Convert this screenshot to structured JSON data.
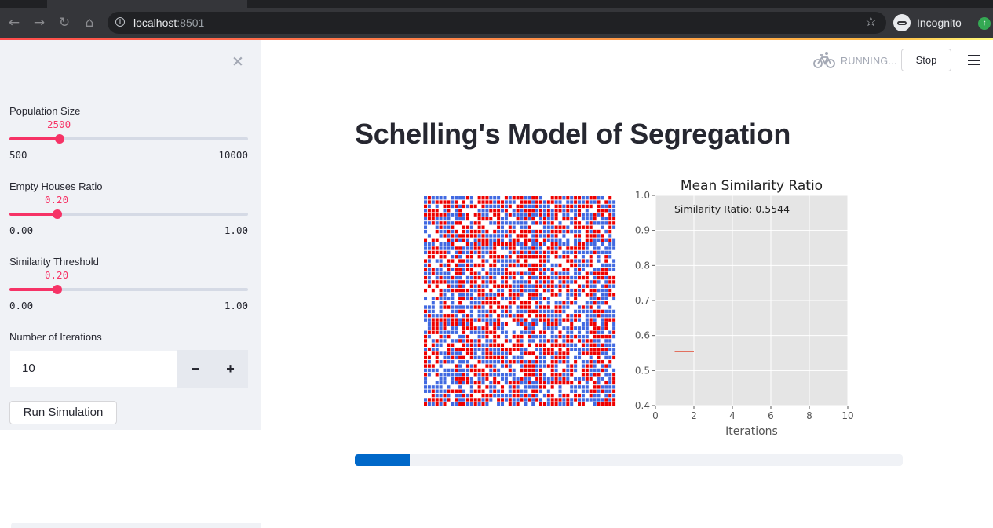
{
  "browser": {
    "url_host": "localhost",
    "url_port": ":8501",
    "profile_label": "Incognito",
    "icons": {
      "back": "arrow-left-icon",
      "forward": "arrow-right-icon",
      "reload": "reload-icon",
      "home": "home-icon",
      "site_info": "info-icon",
      "bookmark": "star-icon",
      "profile": "incognito-icon",
      "extension": "extension-icon"
    }
  },
  "sidebar": {
    "sliders": [
      {
        "label": "Population Size",
        "value_text": "2500",
        "min_text": "500",
        "max_text": "10000",
        "fraction": 0.2
      },
      {
        "label": "Empty Houses Ratio",
        "value_text": "0.20",
        "min_text": "0.00",
        "max_text": "1.00",
        "fraction": 0.2
      },
      {
        "label": "Similarity Threshold",
        "value_text": "0.20",
        "min_text": "0.00",
        "max_text": "1.00",
        "fraction": 0.2
      }
    ],
    "iterations": {
      "label": "Number of Iterations",
      "value": "10",
      "minus": "−",
      "plus": "+"
    },
    "run_label": "Run Simulation",
    "close_glyph": "×"
  },
  "header": {
    "status_text": "RUNNING...",
    "stop_label": "Stop"
  },
  "main": {
    "title": "Schelling's Model of Segregation",
    "progress_fraction": 0.1
  },
  "chart_data": [
    {
      "type": "heatmap",
      "description_colors": {
        "group_a": "#ee0000",
        "group_b": "#4169e1",
        "empty": "#ffffff"
      },
      "grid_size": 50,
      "empty_ratio": 0.2
    },
    {
      "type": "line",
      "title": "Mean Similarity Ratio",
      "annotation": "Similarity Ratio: 0.5544",
      "xlabel": "Iterations",
      "ylabel": "",
      "xlim": [
        0,
        10
      ],
      "ylim": [
        0.4,
        1.0
      ],
      "xticks": [
        0,
        2,
        4,
        6,
        8,
        10
      ],
      "yticks": [
        0.4,
        0.5,
        0.6,
        0.7,
        0.8,
        0.9,
        1.0
      ],
      "x": [
        1,
        2
      ],
      "y": [
        0.5544,
        0.5544
      ],
      "line_color": "#e24a33",
      "background": "#e5e5e5",
      "grid": true
    }
  ]
}
